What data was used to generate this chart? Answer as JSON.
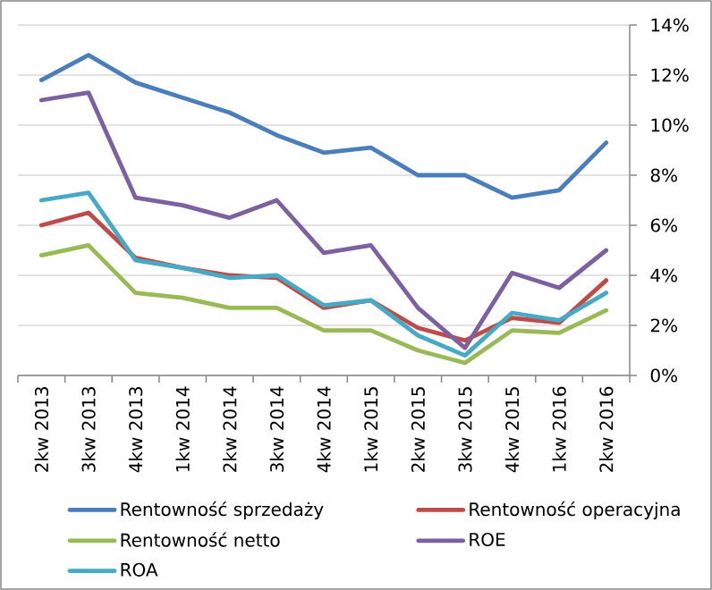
{
  "chart_data": {
    "type": "line",
    "categories": [
      "2kw 2013",
      "3kw 2013",
      "4kw 2013",
      "1kw 2014",
      "2kw 2014",
      "3kw 2014",
      "4kw 2014",
      "1kw 2015",
      "2kw 2015",
      "3kw 2015",
      "4kw 2015",
      "1kw 2016",
      "2kw 2016"
    ],
    "series": [
      {
        "name": "Rentowność sprzedaży",
        "color": "#4a7ebb",
        "values": [
          11.8,
          12.8,
          11.7,
          11.1,
          10.5,
          9.6,
          8.9,
          9.1,
          8.0,
          8.0,
          7.1,
          7.4,
          9.3
        ]
      },
      {
        "name": "Rentowność operacyjna",
        "color": "#be4b48",
        "values": [
          6.0,
          6.5,
          4.7,
          4.3,
          4.0,
          3.9,
          2.7,
          3.0,
          1.9,
          1.4,
          2.3,
          2.1,
          3.8
        ]
      },
      {
        "name": "Rentowność netto",
        "color": "#98b954",
        "values": [
          4.8,
          5.2,
          3.3,
          3.1,
          2.7,
          2.7,
          1.8,
          1.8,
          1.0,
          0.5,
          1.8,
          1.7,
          2.6
        ]
      },
      {
        "name": "ROE",
        "color": "#7d60a0",
        "values": [
          11.0,
          11.3,
          7.1,
          6.8,
          6.3,
          7.0,
          4.9,
          5.2,
          2.7,
          1.1,
          4.1,
          3.5,
          5.0
        ]
      },
      {
        "name": "ROA",
        "color": "#46aac5",
        "values": [
          7.0,
          7.3,
          4.6,
          4.3,
          3.9,
          4.0,
          2.8,
          3.0,
          1.6,
          0.8,
          2.5,
          2.2,
          3.3
        ]
      }
    ],
    "ylim": [
      0,
      14
    ],
    "yticks": [
      {
        "value": 0,
        "label": "0%"
      },
      {
        "value": 2,
        "label": "2%"
      },
      {
        "value": 4,
        "label": "4%"
      },
      {
        "value": 6,
        "label": "6%"
      },
      {
        "value": 8,
        "label": "8%"
      },
      {
        "value": 10,
        "label": "10%"
      },
      {
        "value": 12,
        "label": "12%"
      },
      {
        "value": 14,
        "label": "14%"
      }
    ],
    "grid": "y",
    "legend": "bottom",
    "marker": "none"
  }
}
